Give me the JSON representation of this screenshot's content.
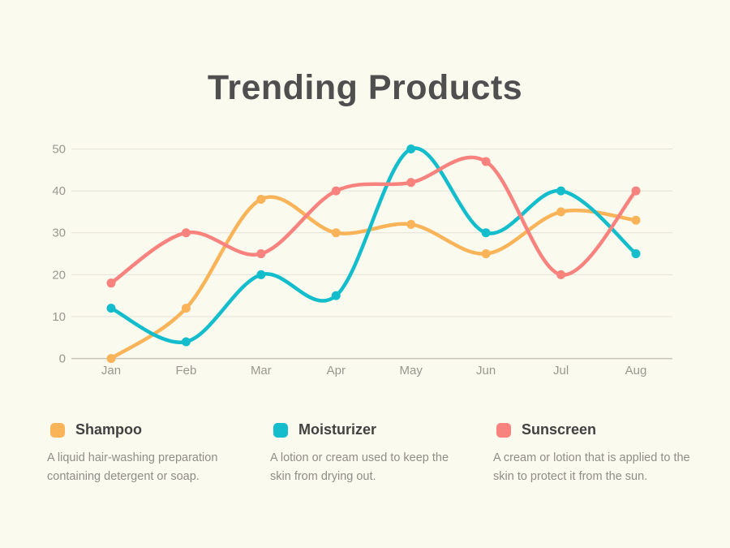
{
  "chart_data": {
    "type": "line",
    "title": "Trending Products",
    "categories": [
      "Jan",
      "Feb",
      "Mar",
      "Apr",
      "May",
      "Jun",
      "Jul",
      "Aug"
    ],
    "series": [
      {
        "name": "Shampoo",
        "color": "#F9B45A",
        "values": [
          0,
          12,
          38,
          30,
          32,
          25,
          35,
          33
        ],
        "description": "A liquid hair-washing preparation containing detergent or soap."
      },
      {
        "name": "Moisturizer",
        "color": "#13BDCB",
        "values": [
          12,
          4,
          20,
          15,
          50,
          30,
          40,
          25
        ],
        "description": "A lotion or cream used to keep the skin from drying out."
      },
      {
        "name": "Sunscreen",
        "color": "#F8827E",
        "values": [
          18,
          30,
          25,
          40,
          42,
          47,
          20,
          40
        ],
        "description": "A cream or lotion that is applied to the skin to protect it from the sun."
      }
    ],
    "xlabel": "",
    "ylabel": "",
    "ylim": [
      0,
      50
    ],
    "yticks": [
      0,
      10,
      20,
      30,
      40,
      50
    ],
    "grid": true,
    "legend_position": "bottom"
  },
  "colors": {
    "background": "#FBFAEF",
    "title": "#4F4F4F",
    "axis_label": "#99988F",
    "gridline": "#E4E2D9",
    "axis_line": "#C6C4BA",
    "legend_label": "#414141",
    "legend_description": "#8F8E86"
  }
}
